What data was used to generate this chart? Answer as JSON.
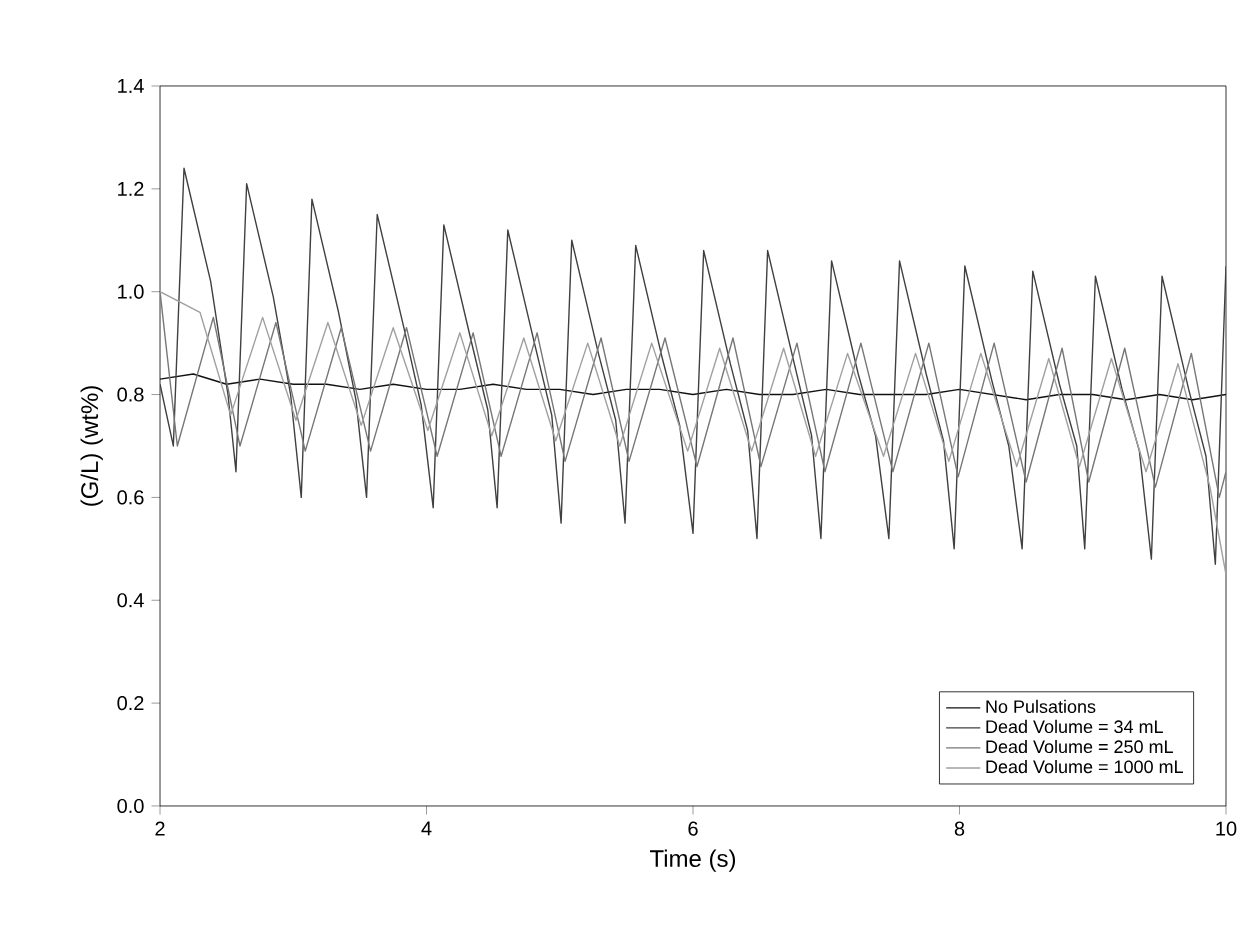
{
  "chart_data": {
    "type": "line",
    "xlabel": "Time (s)",
    "ylabel": "(G/L) (wt%)",
    "xlim": [
      2,
      10
    ],
    "xticks": [
      2,
      4,
      6,
      8,
      10
    ],
    "ylim": [
      0,
      1.4
    ],
    "yticks": [
      {
        "value": 0,
        "label": "0.0"
      },
      0.2,
      0.4,
      0.6,
      0.8,
      {
        "value": 1,
        "label": "1.0"
      },
      1.2,
      1.4
    ],
    "grid": false,
    "legend": "bottom right",
    "marker": "none",
    "line_style": "solid",
    "series": [
      {
        "name": "No Pulsations",
        "color": "#111111",
        "x": [
          2,
          2.25,
          2.5,
          2.75,
          3,
          3.25,
          3.5,
          3.75,
          4,
          4.25,
          4.5,
          4.75,
          5,
          5.25,
          5.5,
          5.75,
          6,
          6.25,
          6.5,
          6.75,
          7,
          7.25,
          7.5,
          7.75,
          8,
          8.25,
          8.5,
          8.75,
          9,
          9.25,
          9.5,
          9.75,
          10
        ],
        "values": [
          0.83,
          0.84,
          0.82,
          0.83,
          0.82,
          0.82,
          0.81,
          0.82,
          0.81,
          0.81,
          0.82,
          0.81,
          0.81,
          0.8,
          0.81,
          0.81,
          0.8,
          0.81,
          0.8,
          0.8,
          0.81,
          0.8,
          0.8,
          0.8,
          0.81,
          0.8,
          0.79,
          0.8,
          0.8,
          0.79,
          0.8,
          0.79,
          0.8
        ]
      },
      {
        "name": "Dead Volume = 34 mL",
        "color": "#404040",
        "x": [
          2.0,
          2.1,
          2.18,
          2.38,
          2.51,
          2.57,
          2.65,
          2.85,
          2.98,
          3.06,
          3.14,
          3.34,
          3.47,
          3.55,
          3.63,
          3.83,
          3.96,
          4.05,
          4.13,
          4.33,
          4.46,
          4.53,
          4.61,
          4.81,
          4.94,
          5.01,
          5.09,
          5.29,
          5.42,
          5.49,
          5.57,
          5.77,
          5.9,
          6.0,
          6.08,
          6.28,
          6.41,
          6.48,
          6.56,
          6.76,
          6.89,
          6.96,
          7.04,
          7.24,
          7.37,
          7.47,
          7.55,
          7.75,
          7.88,
          7.96,
          8.04,
          8.24,
          8.37,
          8.47,
          8.55,
          8.75,
          8.88,
          8.94,
          9.02,
          9.22,
          9.35,
          9.44,
          9.52,
          9.72,
          9.85,
          9.92,
          10.0
        ],
        "values": [
          0.82,
          0.7,
          1.24,
          1.02,
          0.8,
          0.65,
          1.21,
          0.99,
          0.8,
          0.6,
          1.18,
          0.96,
          0.79,
          0.6,
          1.15,
          0.93,
          0.78,
          0.58,
          1.13,
          0.91,
          0.77,
          0.58,
          1.12,
          0.9,
          0.76,
          0.55,
          1.1,
          0.88,
          0.75,
          0.55,
          1.09,
          0.87,
          0.74,
          0.53,
          1.08,
          0.86,
          0.73,
          0.52,
          1.08,
          0.86,
          0.72,
          0.52,
          1.06,
          0.84,
          0.72,
          0.52,
          1.06,
          0.84,
          0.71,
          0.5,
          1.05,
          0.83,
          0.7,
          0.5,
          1.04,
          0.82,
          0.7,
          0.5,
          1.03,
          0.81,
          0.69,
          0.48,
          1.03,
          0.81,
          0.68,
          0.47,
          1.05
        ]
      },
      {
        "name": "Dead Volume = 250 mL",
        "color": "#777777",
        "x": [
          2.0,
          2.13,
          2.4,
          2.6,
          2.87,
          3.09,
          3.36,
          3.58,
          3.85,
          4.08,
          4.35,
          4.56,
          4.83,
          5.04,
          5.31,
          5.52,
          5.79,
          6.03,
          6.3,
          6.51,
          6.78,
          6.99,
          7.26,
          7.5,
          7.77,
          7.99,
          8.26,
          8.5,
          8.77,
          8.97,
          9.24,
          9.47,
          9.74,
          9.95,
          10.0
        ],
        "values": [
          1.0,
          0.7,
          0.95,
          0.7,
          0.94,
          0.69,
          0.93,
          0.69,
          0.93,
          0.68,
          0.92,
          0.68,
          0.92,
          0.67,
          0.91,
          0.67,
          0.91,
          0.66,
          0.91,
          0.66,
          0.9,
          0.65,
          0.9,
          0.65,
          0.9,
          0.64,
          0.9,
          0.63,
          0.89,
          0.63,
          0.89,
          0.62,
          0.88,
          0.6,
          0.65
        ]
      },
      {
        "name": "Dead Volume = 1000 mL",
        "color": "#a0a0a0",
        "x": [
          2.0,
          2.3,
          2.53,
          2.77,
          3.02,
          3.26,
          3.51,
          3.75,
          4.01,
          4.25,
          4.49,
          4.73,
          4.97,
          5.21,
          5.45,
          5.69,
          5.96,
          6.2,
          6.44,
          6.68,
          6.92,
          7.16,
          7.43,
          7.67,
          7.92,
          8.16,
          8.43,
          8.67,
          8.9,
          9.14,
          9.4,
          9.64,
          9.88,
          10.0
        ],
        "values": [
          1.0,
          0.96,
          0.76,
          0.95,
          0.75,
          0.94,
          0.74,
          0.93,
          0.73,
          0.92,
          0.72,
          0.91,
          0.71,
          0.9,
          0.7,
          0.9,
          0.69,
          0.89,
          0.69,
          0.89,
          0.68,
          0.88,
          0.68,
          0.88,
          0.67,
          0.88,
          0.66,
          0.87,
          0.66,
          0.87,
          0.65,
          0.86,
          0.62,
          0.45
        ]
      }
    ]
  }
}
